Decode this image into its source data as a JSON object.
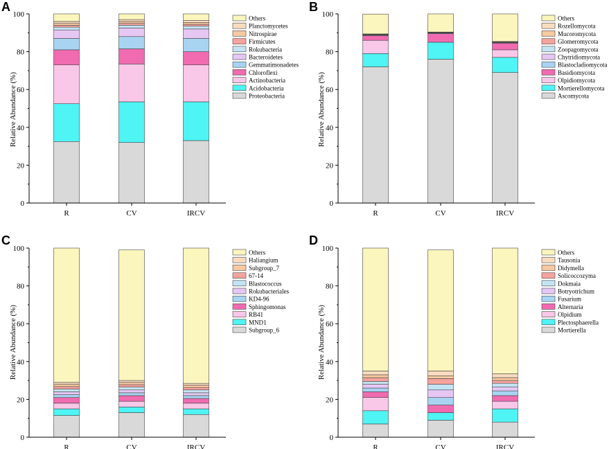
{
  "colors": [
    "#d9d9d9",
    "#4ff4f4",
    "#f9c7e8",
    "#f06bb0",
    "#a8d4f2",
    "#e6c7f4",
    "#c4e4f4",
    "#f7a39d",
    "#f7c9a0",
    "#f9dcc0",
    "#fbf6bd"
  ],
  "chart_data": [
    {
      "type": "bar",
      "stacked": true,
      "panel": "A",
      "categories": [
        "R",
        "CV",
        "IRCV"
      ],
      "ylabel": "Relative Abundance (%)",
      "ylim": [
        0,
        100
      ],
      "yticks": [
        "0",
        "20",
        "40",
        "60",
        "80",
        "100"
      ],
      "series": [
        {
          "name": "Proteobacteria",
          "values": [
            32.5,
            32,
            33
          ]
        },
        {
          "name": "Acidobacteria",
          "values": [
            20,
            21.5,
            20.5
          ]
        },
        {
          "name": "Actinobacteria",
          "values": [
            20.5,
            20,
            19.5
          ]
        },
        {
          "name": "Chloroflexi",
          "values": [
            8,
            8,
            7
          ]
        },
        {
          "name": "Gemmatimonadetes",
          "values": [
            6,
            6.5,
            7
          ]
        },
        {
          "name": "Bacteroidetes",
          "values": [
            4.5,
            4.5,
            5
          ]
        },
        {
          "name": "Rokubacteria",
          "values": [
            1.5,
            1.5,
            1.5
          ]
        },
        {
          "name": "Firmicutes",
          "values": [
            1,
            1,
            1
          ]
        },
        {
          "name": "Nitrospirae",
          "values": [
            1,
            1,
            1
          ]
        },
        {
          "name": "Planctomycetes",
          "values": [
            1,
            1,
            1
          ]
        },
        {
          "name": "Others",
          "values": [
            4,
            3,
            3.5
          ]
        }
      ]
    },
    {
      "type": "bar",
      "stacked": true,
      "panel": "B",
      "categories": [
        "R",
        "CV",
        "IRCV"
      ],
      "ylabel": "Relative Abundance (%)",
      "ylim": [
        0,
        100
      ],
      "yticks": [
        "0",
        "20",
        "40",
        "60",
        "80",
        "100"
      ],
      "series": [
        {
          "name": "Ascomycota",
          "values": [
            72,
            76,
            69
          ]
        },
        {
          "name": "Mortierellomycota",
          "values": [
            7,
            9,
            8
          ]
        },
        {
          "name": "Olpidiomycota",
          "values": [
            7,
            0,
            4
          ]
        },
        {
          "name": "Basidiomycota",
          "values": [
            2.5,
            4.5,
            3.5
          ]
        },
        {
          "name": "Blastocladiomycota",
          "values": [
            0.3,
            0.3,
            0.3
          ]
        },
        {
          "name": "Chytridiomycota",
          "values": [
            0.2,
            0.2,
            0.2
          ]
        },
        {
          "name": "Zoopagomycota",
          "values": [
            0.1,
            0.1,
            0.1
          ]
        },
        {
          "name": "Glomeromycota",
          "values": [
            0.1,
            0.1,
            0.1
          ]
        },
        {
          "name": "Mucoromycota",
          "values": [
            0.1,
            0.1,
            0.1
          ]
        },
        {
          "name": "Rozellomycota",
          "values": [
            0.1,
            0.1,
            0.1
          ]
        },
        {
          "name": "Others",
          "values": [
            10.5,
            9.6,
            14.6
          ]
        }
      ]
    },
    {
      "type": "bar",
      "stacked": true,
      "panel": "C",
      "categories": [
        "R",
        "CV",
        "IRCV"
      ],
      "ylabel": "Relative Abundance (%)",
      "ylim": [
        0,
        100
      ],
      "yticks": [
        "0",
        "20",
        "40",
        "60",
        "80",
        "100"
      ],
      "series": [
        {
          "name": "Subgroup_6",
          "values": [
            11.5,
            13,
            12
          ]
        },
        {
          "name": "MND1",
          "values": [
            3.5,
            3,
            3
          ]
        },
        {
          "name": "RB41",
          "values": [
            3,
            3,
            3
          ]
        },
        {
          "name": "Sphingomonas",
          "values": [
            3,
            3,
            2.5
          ]
        },
        {
          "name": "KD4-96",
          "values": [
            1.5,
            1.5,
            1.5
          ]
        },
        {
          "name": "Rokubacteriales",
          "values": [
            1.5,
            1.5,
            1.5
          ]
        },
        {
          "name": "Blastococcus",
          "values": [
            1.5,
            1.5,
            1.5
          ]
        },
        {
          "name": "67-14",
          "values": [
            1.3,
            1.3,
            1.3
          ]
        },
        {
          "name": "Subgroup_7",
          "values": [
            1.2,
            1.2,
            1.2
          ]
        },
        {
          "name": "Haliangium",
          "values": [
            1,
            1,
            1
          ]
        },
        {
          "name": "Others",
          "values": [
            71,
            69,
            71.5
          ]
        }
      ]
    },
    {
      "type": "bar",
      "stacked": true,
      "panel": "D",
      "categories": [
        "R",
        "CV",
        "IRCV"
      ],
      "ylabel": "Relative Abundance (%)",
      "ylim": [
        0,
        100
      ],
      "yticks": [
        "0",
        "20",
        "40",
        "60",
        "80",
        "100"
      ],
      "series": [
        {
          "name": "Mortierella",
          "values": [
            7,
            9,
            8
          ]
        },
        {
          "name": "Plectosphaerella",
          "values": [
            7,
            4,
            7
          ]
        },
        {
          "name": "Olpidium",
          "values": [
            7,
            0,
            4
          ]
        },
        {
          "name": "Alternaria",
          "values": [
            3,
            4,
            3
          ]
        },
        {
          "name": "Fusarium",
          "values": [
            2,
            4,
            2.5
          ]
        },
        {
          "name": "Botryotrichum",
          "values": [
            2,
            4,
            2
          ]
        },
        {
          "name": "Dokmaia",
          "values": [
            1.5,
            3,
            2
          ]
        },
        {
          "name": "Solicoccozyma",
          "values": [
            2,
            3,
            1.5
          ]
        },
        {
          "name": "Didymella",
          "values": [
            1.5,
            1.5,
            1.5
          ]
        },
        {
          "name": "Tausonia",
          "values": [
            2,
            2.5,
            2
          ]
        },
        {
          "name": "Others",
          "values": [
            65,
            64,
            66.5
          ]
        }
      ]
    }
  ]
}
